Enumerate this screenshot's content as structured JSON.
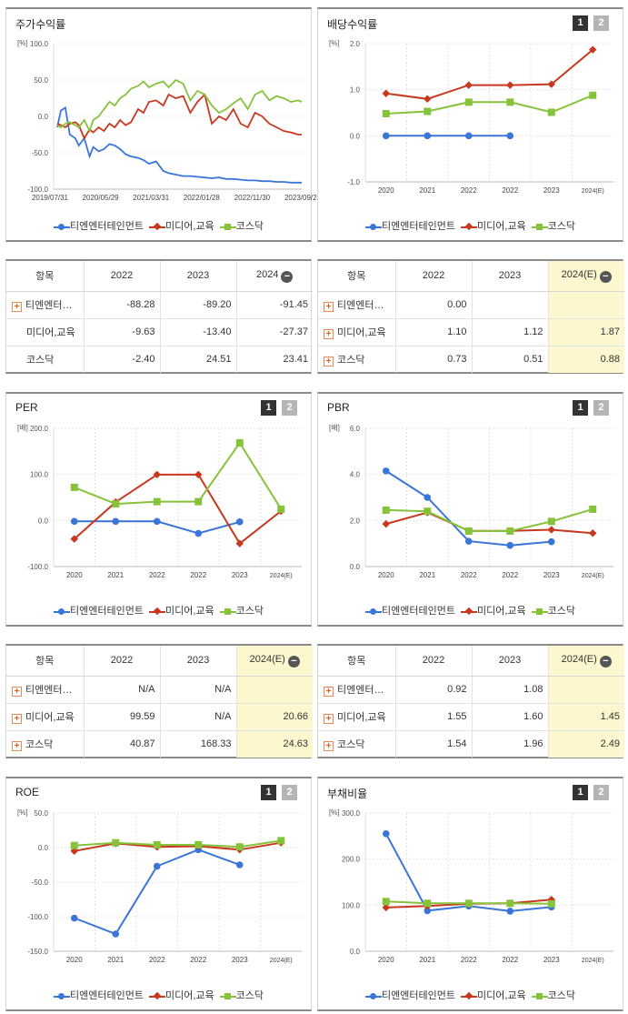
{
  "colors": {
    "blue": "#3a75d8",
    "red": "#c8381f",
    "green": "#86c23a"
  },
  "legend": [
    "티엔엔터테인먼트",
    "미디어,교육",
    "코스닥"
  ],
  "charts": {
    "stock": {
      "title": "주가수익률",
      "unit": "[%]",
      "ylim": [
        -100,
        100
      ],
      "yticks": [
        "100.0",
        "50.0",
        "0.0",
        "-50.0",
        "-100.0"
      ],
      "xticks": [
        "2019/07/31",
        "2020/05/29",
        "2021/03/31",
        "2022/01/28",
        "2022/11/30",
        "2023/09/27"
      ]
    },
    "dividend": {
      "title": "배당수익률",
      "unit": "[%]",
      "page1": "1",
      "page2": "2",
      "ylim": [
        -1,
        2
      ],
      "yticks": [
        "2.0",
        "1.0",
        "0.0",
        "-1.0"
      ],
      "xticks": [
        "2020",
        "2021",
        "2022",
        "2022",
        "2023",
        "2024(E)"
      ]
    },
    "per": {
      "title": "PER",
      "unit": "[배]",
      "page1": "1",
      "page2": "2",
      "ylim": [
        -100,
        200
      ],
      "yticks": [
        "200.0",
        "100.0",
        "0.0",
        "-100.0"
      ],
      "xticks": [
        "2020",
        "2021",
        "2022",
        "2022",
        "2023",
        "2024(E)"
      ]
    },
    "pbr": {
      "title": "PBR",
      "unit": "[배]",
      "page1": "1",
      "page2": "2",
      "ylim": [
        0,
        6
      ],
      "yticks": [
        "6.0",
        "4.0",
        "2.0",
        "0.0"
      ],
      "xticks": [
        "2020",
        "2021",
        "2022",
        "2022",
        "2023",
        "2024(E)"
      ]
    },
    "roe": {
      "title": "ROE",
      "unit": "[%]",
      "page1": "1",
      "page2": "2",
      "ylim": [
        -150,
        50
      ],
      "yticks": [
        "50.0",
        "0.0",
        "-50.0",
        "-100.0",
        "-150.0"
      ],
      "xticks": [
        "2020",
        "2021",
        "2022",
        "2022",
        "2023",
        "2024(E)"
      ]
    },
    "debt": {
      "title": "부채비율",
      "unit": "[%]",
      "page1": "1",
      "page2": "2",
      "ylim": [
        0,
        300
      ],
      "yticks": [
        "300.0",
        "200.0",
        "100.0",
        "0.0"
      ],
      "xticks": [
        "2020",
        "2021",
        "2022",
        "2022",
        "2023",
        "2024(E)"
      ]
    }
  },
  "chart_data": [
    {
      "type": "line",
      "title": "주가수익률",
      "ylabel": "[%]",
      "ylim": [
        -100,
        100
      ],
      "x_index": [
        0,
        4,
        9,
        14,
        20,
        24,
        30,
        36,
        40,
        46,
        52,
        58,
        64,
        70,
        76,
        82,
        90,
        96,
        102,
        110,
        118,
        124,
        132,
        140,
        148,
        156,
        164,
        172,
        180,
        188,
        196,
        204,
        212,
        220,
        228,
        236,
        244,
        252,
        260,
        268,
        272
      ],
      "series": [
        {
          "name": "티엔엔터테인먼트",
          "values": [
            -15,
            8,
            12,
            -25,
            -30,
            -40,
            -30,
            -55,
            -42,
            -48,
            -45,
            -38,
            -40,
            -45,
            -52,
            -55,
            -57,
            -60,
            -65,
            -62,
            -75,
            -78,
            -80,
            -82,
            -82,
            -83,
            -84,
            -85,
            -84,
            -86,
            -86,
            -87,
            -88,
            -88,
            -89,
            -89,
            -90,
            -90,
            -91,
            -91,
            -91
          ]
        },
        {
          "name": "미디어,교육",
          "values": [
            -10,
            -12,
            -15,
            -10,
            -8,
            -12,
            -30,
            -18,
            -22,
            -15,
            -20,
            -10,
            -15,
            -5,
            -12,
            -8,
            10,
            5,
            20,
            22,
            15,
            30,
            25,
            28,
            5,
            20,
            30,
            -10,
            0,
            -5,
            10,
            -10,
            -15,
            5,
            0,
            -10,
            -15,
            -20,
            -22,
            -25,
            -25
          ]
        },
        {
          "name": "코스닥",
          "values": [
            -12,
            -15,
            -10,
            -8,
            -12,
            -15,
            -5,
            -20,
            -5,
            0,
            10,
            20,
            15,
            25,
            30,
            38,
            42,
            48,
            40,
            45,
            48,
            40,
            50,
            45,
            22,
            35,
            30,
            15,
            5,
            10,
            18,
            25,
            10,
            30,
            35,
            22,
            28,
            25,
            20,
            22,
            20
          ]
        }
      ]
    },
    {
      "type": "line",
      "title": "배당수익률",
      "ylabel": "[%]",
      "ylim": [
        -1,
        2
      ],
      "categories": [
        "2020",
        "2021",
        "2022",
        "2022",
        "2023",
        "2024(E)"
      ],
      "series": [
        {
          "name": "티엔엔터테인먼트",
          "values": [
            0.0,
            0.0,
            0.0,
            0.0,
            null,
            null
          ]
        },
        {
          "name": "미디어,교육",
          "values": [
            0.92,
            0.8,
            1.1,
            1.1,
            1.12,
            1.87
          ]
        },
        {
          "name": "코스닥",
          "values": [
            0.48,
            0.53,
            0.73,
            0.73,
            0.51,
            0.88
          ]
        }
      ]
    },
    {
      "type": "line",
      "title": "PER",
      "ylabel": "[배]",
      "ylim": [
        -100,
        200
      ],
      "categories": [
        "2020",
        "2021",
        "2022",
        "2022",
        "2023",
        "2024(E)"
      ],
      "series": [
        {
          "name": "티엔엔터테인먼트",
          "values": [
            -2,
            -2,
            -2,
            -28,
            -3,
            null
          ]
        },
        {
          "name": "미디어,교육",
          "values": [
            -40,
            40,
            99.59,
            99.59,
            -50,
            20.66
          ]
        },
        {
          "name": "코스닥",
          "values": [
            72,
            36,
            40.87,
            40.87,
            168.33,
            24.63
          ]
        }
      ]
    },
    {
      "type": "line",
      "title": "PBR",
      "ylabel": "[배]",
      "ylim": [
        0,
        6
      ],
      "categories": [
        "2020",
        "2021",
        "2022",
        "2022",
        "2023",
        "2024(E)"
      ],
      "series": [
        {
          "name": "티엔엔터테인먼트",
          "values": [
            4.15,
            3.0,
            1.1,
            0.92,
            1.08,
            null
          ]
        },
        {
          "name": "미디어,교육",
          "values": [
            1.85,
            2.35,
            1.55,
            1.55,
            1.6,
            1.45
          ]
        },
        {
          "name": "코스닥",
          "values": [
            2.45,
            2.4,
            1.54,
            1.54,
            1.96,
            2.49
          ]
        }
      ]
    },
    {
      "type": "line",
      "title": "ROE",
      "ylabel": "[%]",
      "ylim": [
        -150,
        50
      ],
      "categories": [
        "2020",
        "2021",
        "2022",
        "2022",
        "2023",
        "2024(E)"
      ],
      "series": [
        {
          "name": "티엔엔터테인먼트",
          "values": [
            -102,
            -125,
            -27,
            -3,
            -25,
            null
          ]
        },
        {
          "name": "미디어,교육",
          "values": [
            -5,
            6,
            1,
            2,
            -3,
            7
          ]
        },
        {
          "name": "코스닥",
          "values": [
            3,
            7,
            4,
            4,
            1,
            10
          ]
        }
      ]
    },
    {
      "type": "line",
      "title": "부채비율",
      "ylabel": "[%]",
      "ylim": [
        0,
        300
      ],
      "categories": [
        "2020",
        "2021",
        "2022",
        "2022",
        "2023",
        "2024(E)"
      ],
      "series": [
        {
          "name": "티엔엔터테인먼트",
          "values": [
            255,
            88,
            98,
            87,
            96,
            null
          ]
        },
        {
          "name": "미디어,교육",
          "values": [
            95,
            98,
            103,
            104,
            112,
            null
          ]
        },
        {
          "name": "코스닥",
          "values": [
            108,
            104,
            104,
            104,
            103,
            null
          ]
        }
      ]
    }
  ],
  "tables": {
    "stock": {
      "header": [
        "항목",
        "2022",
        "2023",
        "2024"
      ],
      "rows": [
        {
          "name": "티엔엔터…",
          "v": [
            "-88.28",
            "-89.20",
            "-91.45"
          ],
          "plus": true
        },
        {
          "name": "미디어,교육",
          "v": [
            "-9.63",
            "-13.40",
            "-27.37"
          ],
          "plus": false
        },
        {
          "name": "코스닥",
          "v": [
            "-2.40",
            "24.51",
            "23.41"
          ],
          "plus": false
        }
      ]
    },
    "dividend": {
      "header": [
        "항목",
        "2022",
        "2023",
        "2024(E)"
      ],
      "rows": [
        {
          "name": "티엔엔터…",
          "v": [
            "0.00",
            "",
            ""
          ],
          "plus": true
        },
        {
          "name": "미디어,교육",
          "v": [
            "1.10",
            "1.12",
            "1.87"
          ],
          "plus": true
        },
        {
          "name": "코스닥",
          "v": [
            "0.73",
            "0.51",
            "0.88"
          ],
          "plus": true
        }
      ]
    },
    "per": {
      "header": [
        "항목",
        "2022",
        "2023",
        "2024(E)"
      ],
      "rows": [
        {
          "name": "티엔엔터…",
          "v": [
            "N/A",
            "N/A",
            ""
          ],
          "plus": true
        },
        {
          "name": "미디어,교육",
          "v": [
            "99.59",
            "N/A",
            "20.66"
          ],
          "plus": true
        },
        {
          "name": "코스닥",
          "v": [
            "40.87",
            "168.33",
            "24.63"
          ],
          "plus": true
        }
      ]
    },
    "pbr": {
      "header": [
        "항목",
        "2022",
        "2023",
        "2024(E)"
      ],
      "rows": [
        {
          "name": "티엔엔터…",
          "v": [
            "0.92",
            "1.08",
            ""
          ],
          "plus": true
        },
        {
          "name": "미디어,교육",
          "v": [
            "1.55",
            "1.60",
            "1.45"
          ],
          "plus": true
        },
        {
          "name": "코스닥",
          "v": [
            "1.54",
            "1.96",
            "2.49"
          ],
          "plus": true
        }
      ]
    }
  }
}
